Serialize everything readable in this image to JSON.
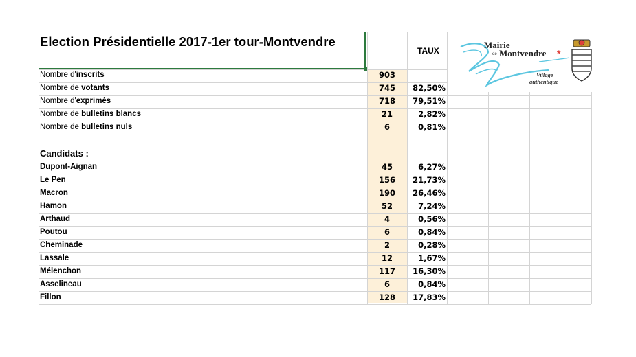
{
  "title": "Election Présidentielle 2017-1er tour-Montvendre",
  "taux_header": "TAUX",
  "summary_rows": [
    {
      "prefix": "Nombre d'",
      "bold": "inscrits",
      "count": "903",
      "pct": ""
    },
    {
      "prefix": "Nombre de ",
      "bold": "votants",
      "count": "745",
      "pct": "82,50%"
    },
    {
      "prefix": "Nombre d'",
      "bold": "exprimés",
      "count": "718",
      "pct": "79,51%"
    },
    {
      "prefix": "Nombre de ",
      "bold": "bulletins blancs",
      "count": "21",
      "pct": "2,82%"
    },
    {
      "prefix": "Nombre de ",
      "bold": "bulletins nuls",
      "count": "6",
      "pct": "0,81%"
    }
  ],
  "candidates_header": "Candidats :",
  "candidates": [
    {
      "name": "Dupont-Aignan",
      "votes": "45",
      "pct": "6,27%"
    },
    {
      "name": "Le Pen",
      "votes": "156",
      "pct": "21,73%"
    },
    {
      "name": "Macron",
      "votes": "190",
      "pct": "26,46%"
    },
    {
      "name": "Hamon",
      "votes": "52",
      "pct": "7,24%"
    },
    {
      "name": "Arthaud",
      "votes": "4",
      "pct": "0,56%"
    },
    {
      "name": "Poutou",
      "votes": "6",
      "pct": "0,84%"
    },
    {
      "name": "Cheminade",
      "votes": "2",
      "pct": "0,28%"
    },
    {
      "name": "Lassale",
      "votes": "12",
      "pct": "1,67%"
    },
    {
      "name": "Mélenchon",
      "votes": "117",
      "pct": "16,30%"
    },
    {
      "name": "Asselineau",
      "votes": "6",
      "pct": "0,84%"
    },
    {
      "name": "Fillon",
      "votes": "128",
      "pct": "17,83%"
    }
  ],
  "logo": {
    "line1": "Mairie",
    "line2_small": "de",
    "line2": "Montvendre",
    "tag1": "Village",
    "tag2": "authentique",
    "accent_color": "#e0403a",
    "swoosh_color": "#5cc6e0"
  }
}
